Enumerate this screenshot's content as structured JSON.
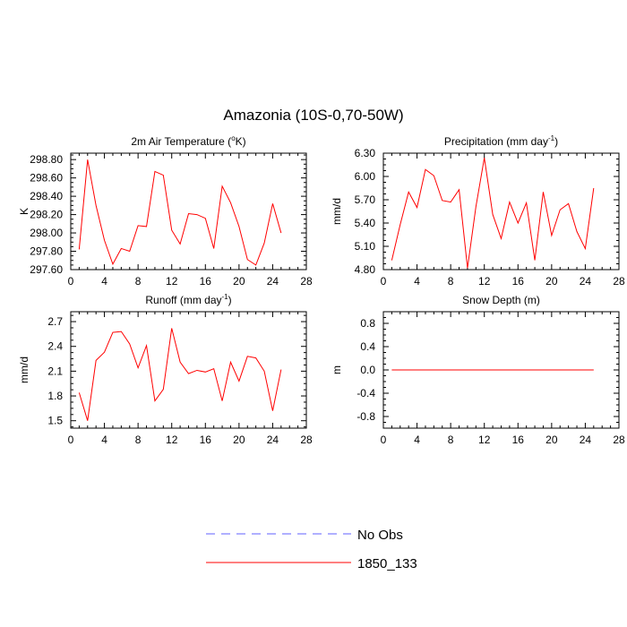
{
  "figure_title": "Amazonia (10S-0,70-50W)",
  "legend": [
    {
      "label": "No Obs",
      "color": "#6060ff",
      "style": "dashed"
    },
    {
      "label": "1850_133",
      "color": "#ff0000",
      "style": "solid"
    }
  ],
  "chart_data": [
    {
      "id": "tas",
      "type": "line",
      "title_main": "2m Air Temperature (",
      "title_sup": "o",
      "title_tail": "K)",
      "ylabel": "K",
      "xlim": [
        0,
        28
      ],
      "xticks": [
        0,
        4,
        8,
        12,
        16,
        20,
        24,
        28
      ],
      "xtick_labels": [
        "0",
        "4",
        "8",
        "12",
        "16",
        "20",
        "24",
        "28"
      ],
      "ylim": [
        297.6,
        298.87
      ],
      "yticks": [
        297.6,
        297.8,
        298.0,
        298.2,
        298.4,
        298.6,
        298.8
      ],
      "ytick_labels": [
        "297.60",
        "297.80",
        "298.00",
        "298.20",
        "298.40",
        "298.60",
        "298.80"
      ],
      "series": [
        {
          "name": "1850_133",
          "color": "#ff0000",
          "x": [
            1,
            2,
            3,
            4,
            5,
            6,
            7,
            8,
            9,
            10,
            11,
            12,
            13,
            14,
            15,
            16,
            17,
            18,
            19,
            20,
            21,
            22,
            23,
            24,
            25
          ],
          "y": [
            297.82,
            298.8,
            298.3,
            297.92,
            297.66,
            297.83,
            297.8,
            298.08,
            298.07,
            298.67,
            298.63,
            298.03,
            297.88,
            298.21,
            298.2,
            298.16,
            297.83,
            298.51,
            298.33,
            298.07,
            297.71,
            297.65,
            297.89,
            298.32,
            298.0
          ]
        }
      ]
    },
    {
      "id": "pr",
      "type": "line",
      "title_main": "Precipitation (mm day",
      "title_sup": "-1",
      "title_tail": ")",
      "ylabel": "mm/d",
      "xlim": [
        0,
        28
      ],
      "xticks": [
        0,
        4,
        8,
        12,
        16,
        20,
        24,
        28
      ],
      "xtick_labels": [
        "0",
        "4",
        "8",
        "12",
        "16",
        "20",
        "24",
        "28"
      ],
      "ylim": [
        4.8,
        6.3
      ],
      "yticks": [
        4.8,
        5.1,
        5.4,
        5.7,
        6.0,
        6.3
      ],
      "ytick_labels": [
        "4.80",
        "5.10",
        "5.40",
        "5.70",
        "6.00",
        "6.30"
      ],
      "series": [
        {
          "name": "1850_133",
          "color": "#ff0000",
          "x": [
            1,
            2,
            3,
            4,
            5,
            6,
            7,
            8,
            9,
            10,
            11,
            12,
            13,
            14,
            15,
            16,
            17,
            18,
            19,
            20,
            21,
            22,
            23,
            24,
            25
          ],
          "y": [
            4.92,
            5.38,
            5.8,
            5.6,
            6.09,
            6.01,
            5.69,
            5.67,
            5.83,
            4.82,
            5.61,
            6.24,
            5.51,
            5.2,
            5.67,
            5.4,
            5.66,
            4.92,
            5.8,
            5.24,
            5.57,
            5.65,
            5.29,
            5.07,
            5.85
          ]
        }
      ]
    },
    {
      "id": "runoff",
      "type": "line",
      "title_main": "Runoff (mm day",
      "title_sup": "-1",
      "title_tail": ")",
      "ylabel": "mm/d",
      "xlim": [
        0,
        28
      ],
      "xticks": [
        0,
        4,
        8,
        12,
        16,
        20,
        24,
        28
      ],
      "xtick_labels": [
        "0",
        "4",
        "8",
        "12",
        "16",
        "20",
        "24",
        "28"
      ],
      "ylim": [
        1.41,
        2.82
      ],
      "yticks": [
        1.5,
        1.8,
        2.1,
        2.4,
        2.7
      ],
      "ytick_labels": [
        "1.5",
        "1.8",
        "2.1",
        "2.4",
        "2.7"
      ],
      "series": [
        {
          "name": "1850_133",
          "color": "#ff0000",
          "x": [
            1,
            2,
            3,
            4,
            5,
            6,
            7,
            8,
            9,
            10,
            11,
            12,
            13,
            14,
            15,
            16,
            17,
            18,
            19,
            20,
            21,
            22,
            23,
            24,
            25
          ],
          "y": [
            1.84,
            1.5,
            2.23,
            2.33,
            2.57,
            2.58,
            2.43,
            2.14,
            2.41,
            1.74,
            1.88,
            2.62,
            2.21,
            2.07,
            2.11,
            2.09,
            2.13,
            1.74,
            2.21,
            1.98,
            2.28,
            2.26,
            2.1,
            1.62,
            2.12
          ]
        }
      ]
    },
    {
      "id": "snd",
      "type": "line",
      "title_main": "Snow Depth (m)",
      "title_sup": "",
      "title_tail": "",
      "ylabel": "m",
      "xlim": [
        0,
        28
      ],
      "xticks": [
        0,
        4,
        8,
        12,
        16,
        20,
        24,
        28
      ],
      "xtick_labels": [
        "0",
        "4",
        "8",
        "12",
        "16",
        "20",
        "24",
        "28"
      ],
      "ylim": [
        -1.0,
        1.0
      ],
      "yticks": [
        -0.8,
        -0.4,
        0.0,
        0.4,
        0.8
      ],
      "ytick_labels": [
        "-0.8",
        "-0.4",
        "0.0",
        "0.4",
        "0.8"
      ],
      "series": [
        {
          "name": "1850_133",
          "color": "#ff0000",
          "x": [
            1,
            2,
            3,
            4,
            5,
            6,
            7,
            8,
            9,
            10,
            11,
            12,
            13,
            14,
            15,
            16,
            17,
            18,
            19,
            20,
            21,
            22,
            23,
            24,
            25
          ],
          "y": [
            0,
            0,
            0,
            0,
            0,
            0,
            0,
            0,
            0,
            0,
            0,
            0,
            0,
            0,
            0,
            0,
            0,
            0,
            0,
            0,
            0,
            0,
            0,
            0,
            0
          ]
        }
      ]
    }
  ]
}
